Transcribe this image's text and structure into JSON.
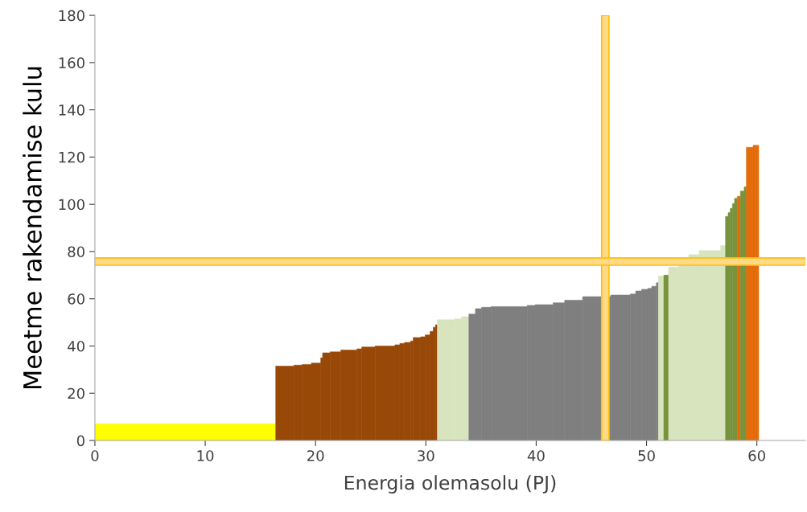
{
  "chart_data": {
    "type": "histogram",
    "xlabel": "Energia olemasolu (PJ)",
    "ylabel": "Meetme rakendamise kulu",
    "xlim": [
      0,
      64.4
    ],
    "xticks": [
      0,
      10,
      20,
      30,
      40,
      50,
      60
    ],
    "ylim": [
      0,
      180
    ],
    "yticks": [
      0,
      20,
      40,
      60,
      80,
      100,
      120,
      140,
      160,
      180
    ],
    "grid": false,
    "legend": false,
    "bins": [
      0,
      16.39,
      18.04,
      18.77,
      19.62,
      20.47,
      20.64,
      21.32,
      22.29,
      23.75,
      24.19,
      25.4,
      27.2,
      27.64,
      28.07,
      28.61,
      28.85,
      29.53,
      29.94,
      30.38,
      30.67,
      30.87,
      31.04,
      32.62,
      33.22,
      33.9,
      34.49,
      35.05,
      35.9,
      39.18,
      39.9,
      41.53,
      42.58,
      44.21,
      46.76,
      48.53,
      49.02,
      49.55,
      50.11,
      50.47,
      50.89,
      51.08,
      51.57,
      52.0,
      52.9,
      53.83,
      54.77,
      56.72,
      57.16,
      57.4,
      57.59,
      57.79,
      57.98,
      58.22,
      58.51,
      58.85,
      59.05,
      59.66,
      60.17
    ],
    "values": [
      7.1,
      31.5,
      31.9,
      32.2,
      32.8,
      35,
      37.1,
      37.5,
      38.3,
      38.8,
      39.6,
      40.0,
      40.5,
      41.1,
      41.5,
      42.1,
      43.6,
      43.9,
      44.7,
      46.2,
      47.9,
      49.0,
      51.1,
      51.5,
      52.4,
      53.5,
      55.8,
      56.4,
      56.7,
      57.2,
      57.5,
      58.3,
      59.4,
      60.9,
      61.6,
      62.0,
      63.3,
      64.0,
      64.4,
      65.3,
      66.8,
      69.6,
      70.0,
      73.4,
      73.9,
      78.7,
      80.4,
      82.5,
      94.9,
      96.5,
      98.3,
      100.3,
      102.5,
      103.4,
      105.6,
      107.4,
      124.1,
      125.0
    ],
    "colors": [
      "#ffff00",
      "#984807",
      "#984807",
      "#984807",
      "#984807",
      "#984807",
      "#984807",
      "#984807",
      "#984807",
      "#984807",
      "#984807",
      "#984807",
      "#984807",
      "#984807",
      "#984807",
      "#984807",
      "#984807",
      "#984807",
      "#984807",
      "#984807",
      "#984807",
      "#984807",
      "#d7e4bd",
      "#d7e4bd",
      "#d7e4bd",
      "#7f7f7f",
      "#7f7f7f",
      "#7f7f7f",
      "#7f7f7f",
      "#7f7f7f",
      "#7f7f7f",
      "#7f7f7f",
      "#7f7f7f",
      "#7f7f7f",
      "#7f7f7f",
      "#7f7f7f",
      "#7f7f7f",
      "#7f7f7f",
      "#7f7f7f",
      "#7f7f7f",
      "#7f7f7f",
      "#d7e4bd",
      "#77933c",
      "#d7e4bd",
      "#d7e4bd",
      "#d7e4bd",
      "#d7e4bd",
      "#d7e4bd",
      "#77933c",
      "#77933c",
      "#77933c",
      "#77933c",
      "#77933c",
      "#e46c0a",
      "#77933c",
      "#77933c",
      "#e46c0a",
      "#e46c0a"
    ],
    "bands": [
      {
        "axis": "x",
        "from": 45.93,
        "to": 46.6,
        "color": "#ffd98a"
      },
      {
        "axis": "y",
        "from": 74.2,
        "to": 77.3,
        "color": "#ffd98a"
      }
    ]
  }
}
